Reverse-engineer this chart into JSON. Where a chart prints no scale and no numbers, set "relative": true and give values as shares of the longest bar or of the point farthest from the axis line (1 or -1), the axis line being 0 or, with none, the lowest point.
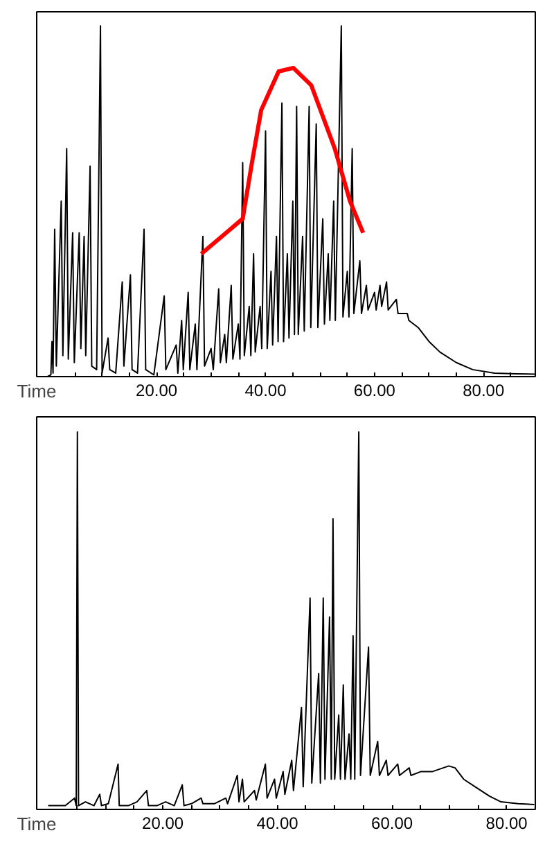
{
  "chart_data": [
    {
      "type": "line",
      "relative": true,
      "xlabel": "Time",
      "xlim": [
        -2,
        89.5
      ],
      "tick_labels": "x",
      "grid": false,
      "line_style": "solid",
      "xticks": [
        {
          "value": 5,
          "label": null
        },
        {
          "value": 10,
          "label": null
        },
        {
          "value": 15,
          "label": null
        },
        {
          "value": 20,
          "label": "20.00"
        },
        {
          "value": 25,
          "label": null
        },
        {
          "value": 30,
          "label": null
        },
        {
          "value": 35,
          "label": null
        },
        {
          "value": 40,
          "label": "40.00"
        },
        {
          "value": 45,
          "label": null
        },
        {
          "value": 50,
          "label": null
        },
        {
          "value": 55,
          "label": null
        },
        {
          "value": 60,
          "label": "60.00"
        },
        {
          "value": 65,
          "label": null
        },
        {
          "value": 70,
          "label": null
        },
        {
          "value": 75,
          "label": null
        },
        {
          "value": 80,
          "label": "80.00"
        },
        {
          "value": 85,
          "label": null
        }
      ],
      "series": [
        {
          "color": "#000000",
          "x": [
            0.0,
            0.6,
            0.8,
            1.0,
            1.3,
            1.6,
            2.5,
            2.8,
            3.5,
            3.8,
            4.6,
            4.9,
            5.8,
            6.1,
            6.7,
            7.0,
            7.8,
            8.1,
            9.0,
            9.7,
            10.0,
            11.1,
            11.4,
            12.5,
            13.7,
            14.0,
            15.2,
            15.5,
            16.5,
            17.7,
            18.0,
            19.5,
            21.4,
            21.7,
            23.6,
            23.9,
            24.6,
            24.9,
            25.8,
            26.1,
            27.1,
            27.4,
            28.5,
            28.8,
            30.0,
            30.4,
            31.4,
            31.7,
            32.5,
            32.8,
            33.7,
            34.0,
            35.0,
            35.3,
            35.8,
            36.1,
            37.0,
            37.3,
            37.8,
            38.1,
            39.0,
            39.3,
            40.0,
            40.3,
            41.0,
            41.3,
            42.0,
            42.3,
            43.0,
            43.3,
            44.0,
            44.3,
            45.0,
            45.3,
            45.7,
            46.0,
            46.8,
            47.1,
            48.0,
            48.3,
            49.3,
            49.6,
            50.5,
            50.8,
            51.5,
            51.8,
            52.5,
            52.8,
            53.9,
            54.2,
            55.0,
            55.3,
            55.9,
            56.2,
            57.3,
            57.6,
            58.5,
            58.8,
            60.0,
            60.3,
            61.0,
            61.3,
            62.2,
            62.5,
            64.0,
            64.3,
            66.0,
            66.3,
            68.0,
            70.0,
            72.0,
            75.0,
            78.0,
            82.0,
            86.0,
            89.5
          ],
          "values": [
            0,
            0.005,
            0.1,
            0.01,
            0.42,
            0.03,
            0.5,
            0.06,
            0.65,
            0.05,
            0.41,
            0.04,
            0.41,
            0.08,
            0.4,
            0.06,
            0.6,
            0.03,
            0.02,
            1.0,
            0.01,
            0.11,
            0.02,
            0.01,
            0.27,
            0.03,
            0.29,
            0.02,
            0.01,
            0.42,
            0.02,
            0.005,
            0.23,
            0.02,
            0.09,
            0.01,
            0.16,
            0.02,
            0.24,
            0.02,
            0.15,
            0.02,
            0.4,
            0.03,
            0.08,
            0.02,
            0.25,
            0.04,
            0.12,
            0.04,
            0.26,
            0.05,
            0.15,
            0.05,
            0.61,
            0.06,
            0.2,
            0.06,
            0.35,
            0.07,
            0.2,
            0.08,
            0.7,
            0.08,
            0.3,
            0.09,
            0.4,
            0.1,
            0.78,
            0.1,
            0.35,
            0.11,
            0.5,
            0.12,
            0.77,
            0.12,
            0.4,
            0.13,
            0.77,
            0.14,
            0.72,
            0.14,
            0.45,
            0.15,
            0.35,
            0.16,
            0.5,
            0.16,
            1.0,
            0.17,
            0.3,
            0.17,
            0.65,
            0.18,
            0.33,
            0.18,
            0.26,
            0.19,
            0.24,
            0.19,
            0.26,
            0.2,
            0.27,
            0.19,
            0.22,
            0.18,
            0.18,
            0.16,
            0.14,
            0.1,
            0.07,
            0.04,
            0.02,
            0.01,
            0.008,
            0.007
          ]
        },
        {
          "color": "#ff0000",
          "x": [
            28.2,
            32.0,
            35.8,
            37.5,
            39.2,
            42.4,
            45.1,
            48.4,
            52.7,
            55.5,
            57.9
          ],
          "values": [
            0.35,
            0.4,
            0.45,
            0.61,
            0.76,
            0.87,
            0.88,
            0.83,
            0.65,
            0.5,
            0.41
          ]
        }
      ]
    },
    {
      "type": "line",
      "relative": true,
      "xlabel": "Time",
      "xlim": [
        -2,
        85
      ],
      "tick_labels": "x",
      "grid": false,
      "line_style": "solid",
      "xticks": [
        {
          "value": 5,
          "label": null
        },
        {
          "value": 10,
          "label": null
        },
        {
          "value": 15,
          "label": null
        },
        {
          "value": 20,
          "label": "20.00"
        },
        {
          "value": 25,
          "label": null
        },
        {
          "value": 30,
          "label": null
        },
        {
          "value": 35,
          "label": null
        },
        {
          "value": 40,
          "label": "40.00"
        },
        {
          "value": 45,
          "label": null
        },
        {
          "value": 50,
          "label": null
        },
        {
          "value": 55,
          "label": null
        },
        {
          "value": 60,
          "label": "60.00"
        },
        {
          "value": 65,
          "label": null
        },
        {
          "value": 70,
          "label": null
        },
        {
          "value": 75,
          "label": null
        },
        {
          "value": 80,
          "label": "80.00"
        }
      ],
      "series": [
        {
          "color": "#000000",
          "x": [
            0,
            3.0,
            4.6,
            4.9,
            5.1,
            5.3,
            6.5,
            8.0,
            9.0,
            9.3,
            10.5,
            12.2,
            12.4,
            14.0,
            15.5,
            17.2,
            17.5,
            19.0,
            20.5,
            22.0,
            23.4,
            23.7,
            25.0,
            26.7,
            27.0,
            29.0,
            31.0,
            31.3,
            33.0,
            33.3,
            33.9,
            34.2,
            36.0,
            36.3,
            37.9,
            38.2,
            39.5,
            39.8,
            41.0,
            41.3,
            42.5,
            42.8,
            44.2,
            44.5,
            45.7,
            46.0,
            47.2,
            47.5,
            48.0,
            48.3,
            49.1,
            49.4,
            49.7,
            50.0,
            50.7,
            51.0,
            51.5,
            51.8,
            52.5,
            52.8,
            53.2,
            53.5,
            54.2,
            54.5,
            55.9,
            56.2,
            57.5,
            57.8,
            59.0,
            59.3,
            61.0,
            61.3,
            63.0,
            63.3,
            65.0,
            67.0,
            69.9,
            71.0,
            72.5,
            74.5,
            77.0,
            79.0,
            82.0,
            84.8
          ],
          "values": [
            0.01,
            0.01,
            0.03,
            0.01,
            1.0,
            0.01,
            0.02,
            0.01,
            0.04,
            0.01,
            0.015,
            0.12,
            0.01,
            0.01,
            0.02,
            0.05,
            0.01,
            0.01,
            0.02,
            0.01,
            0.065,
            0.01,
            0.015,
            0.03,
            0.015,
            0.015,
            0.03,
            0.015,
            0.09,
            0.02,
            0.08,
            0.02,
            0.05,
            0.025,
            0.12,
            0.03,
            0.08,
            0.03,
            0.1,
            0.04,
            0.13,
            0.05,
            0.27,
            0.06,
            0.56,
            0.07,
            0.36,
            0.07,
            0.56,
            0.08,
            0.51,
            0.08,
            0.77,
            0.08,
            0.25,
            0.08,
            0.33,
            0.08,
            0.2,
            0.08,
            0.46,
            0.08,
            1.0,
            0.09,
            0.43,
            0.09,
            0.18,
            0.09,
            0.13,
            0.09,
            0.12,
            0.09,
            0.11,
            0.09,
            0.1,
            0.1,
            0.115,
            0.11,
            0.08,
            0.06,
            0.035,
            0.02,
            0.015,
            0.013
          ]
        }
      ]
    }
  ]
}
